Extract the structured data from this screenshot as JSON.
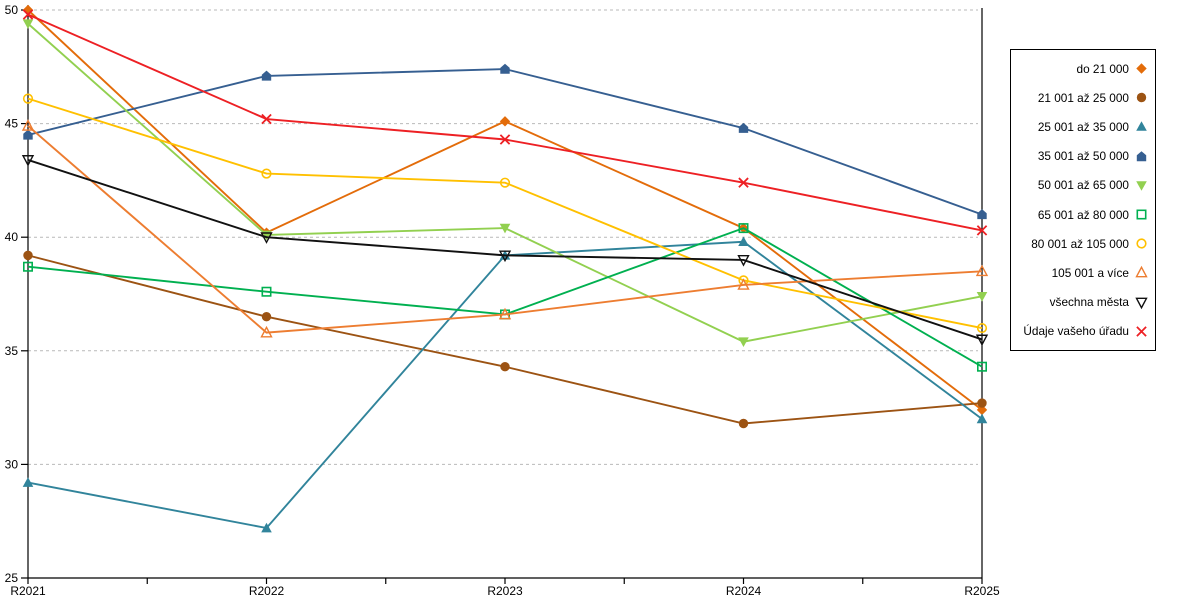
{
  "chart_data": {
    "type": "line",
    "title": "",
    "xlabel": "",
    "ylabel": "",
    "x_categories": [
      "R2021",
      "R2022",
      "R2023",
      "R2024",
      "R2025"
    ],
    "ylim": [
      25,
      50
    ],
    "yticks": [
      25,
      30,
      35,
      40,
      45,
      50
    ],
    "grid": "horizontal-dashed",
    "grid_color": "#b9b9b9",
    "axis_color": "#000000",
    "legend_position": "right",
    "series": [
      {
        "name": "do 21 000",
        "marker": "diamond-filled",
        "color": "#E36C0A",
        "values": [
          50.0,
          40.2,
          45.1,
          40.4,
          32.4
        ]
      },
      {
        "name": "21 001 až 25 000",
        "marker": "circle-filled",
        "color": "#9C5313",
        "values": [
          39.2,
          36.5,
          34.3,
          31.8,
          32.7
        ]
      },
      {
        "name": "25 001 až 35 000",
        "marker": "triangle-up-filled",
        "color": "#31849B",
        "values": [
          29.2,
          27.2,
          39.2,
          39.8,
          32.0
        ]
      },
      {
        "name": "35 001 až 50 000",
        "marker": "pentagon-filled",
        "color": "#365F91",
        "values": [
          44.5,
          47.1,
          47.4,
          44.8,
          41.0
        ]
      },
      {
        "name": "50 001 až 65 000",
        "marker": "triangle-down-filled",
        "color": "#92D050",
        "values": [
          49.4,
          40.1,
          40.4,
          35.4,
          37.4
        ]
      },
      {
        "name": "65 001 až 80 000",
        "marker": "square-open",
        "color": "#00B050",
        "values": [
          38.7,
          37.6,
          36.6,
          40.4,
          34.3
        ]
      },
      {
        "name": "80 001 až 105 000",
        "marker": "circle-open",
        "color": "#FFC000",
        "values": [
          46.1,
          42.8,
          42.4,
          38.1,
          36.0
        ]
      },
      {
        "name": "105 001 a více",
        "marker": "triangle-up-open",
        "color": "#ED7D31",
        "values": [
          44.9,
          35.8,
          36.6,
          37.9,
          38.5
        ]
      },
      {
        "name": "všechna města",
        "marker": "triangle-down-open",
        "color": "#111111",
        "values": [
          43.4,
          40.0,
          39.2,
          39.0,
          35.5
        ]
      },
      {
        "name": "Údaje vašeho úřadu",
        "marker": "x-cross",
        "color": "#ED2024",
        "values": [
          49.8,
          45.2,
          44.3,
          42.4,
          40.3
        ]
      }
    ]
  }
}
